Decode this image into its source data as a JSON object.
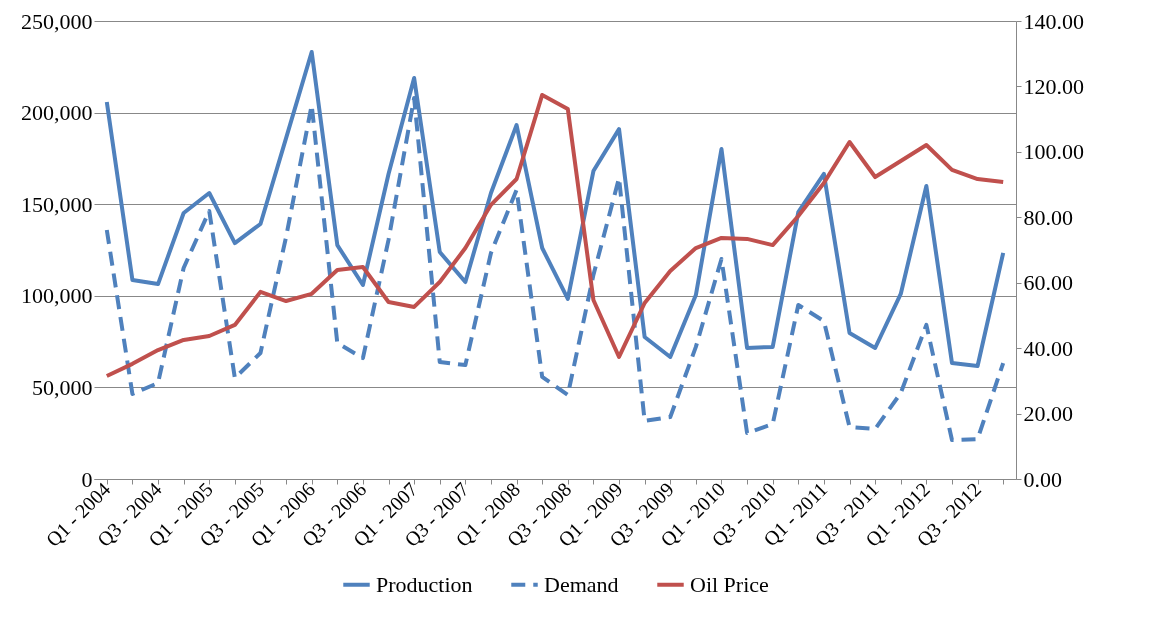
{
  "chart_data": {
    "type": "line",
    "categories": [
      "Q1 - 2004",
      null,
      "Q3 - 2004",
      null,
      "Q1 - 2005",
      null,
      "Q3 - 2005",
      null,
      "Q1 - 2006",
      null,
      "Q3 - 2006",
      null,
      "Q1 - 2007",
      null,
      "Q3 - 2007",
      null,
      "Q1 - 2008",
      null,
      "Q3 - 2008",
      null,
      "Q1 - 2009",
      null,
      "Q3 - 2009",
      null,
      "Q1 - 2010",
      null,
      "Q3 - 2010",
      null,
      "Q1 - 2011",
      null,
      "Q3 - 2011",
      null,
      "Q1 - 2012",
      null,
      "Q3 - 2012",
      null
    ],
    "series": [
      {
        "name": "Production",
        "color": "#4f81bd",
        "line_style": "solid",
        "values": [
          205800,
          108600,
          106400,
          145200,
          156100,
          128800,
          139200,
          186100,
          233100,
          127700,
          105900,
          166500,
          218900,
          123900,
          107500,
          156100,
          193200,
          126100,
          98300,
          168100,
          191000,
          77500,
          66600,
          100400,
          180100,
          71500,
          72100,
          145700,
          166500,
          79700,
          71500,
          101000,
          159900,
          63300,
          61700,
          123400
        ]
      },
      {
        "name": "Demand",
        "color": "#4f81bd",
        "line_style": "dashed",
        "values": [
          135900,
          46400,
          52400,
          115200,
          146300,
          55100,
          68800,
          132100,
          204100,
          74200,
          66000,
          130500,
          208000,
          63900,
          62200,
          123400,
          157800,
          55700,
          45900,
          111400,
          164300,
          31700,
          33800,
          72100,
          120100,
          25100,
          30000,
          95000,
          86200,
          28400,
          27300,
          46900,
          84100,
          21300,
          21800,
          63300
        ]
      },
      {
        "name": "Oil Price",
        "color": "#c0504d",
        "line_style": "solid",
        "axis": "y2",
        "values": [
          31.5,
          35.2,
          39.4,
          42.5,
          43.7,
          47.1,
          57.2,
          54.4,
          56.6,
          63.9,
          64.8,
          54.1,
          52.6,
          60.2,
          70.6,
          83.8,
          91.7,
          117.4,
          113.1,
          54.7,
          37.3,
          53.8,
          63.6,
          70.6,
          73.7,
          73.4,
          71.5,
          80.4,
          90.5,
          103.0,
          92.3,
          97.2,
          102.1,
          94.5,
          91.7,
          90.8
        ]
      }
    ],
    "ylim": [
      0,
      250000
    ],
    "yticks": [
      0,
      {
        "value": 50000,
        "label": "50,000"
      },
      {
        "value": 100000,
        "label": "100,000"
      },
      {
        "value": 150000,
        "label": "150,000"
      },
      {
        "value": 200000,
        "label": "200,000"
      },
      {
        "value": 250000,
        "label": "250,000"
      }
    ],
    "y2lim": [
      0,
      140
    ],
    "y2ticks": [
      {
        "value": 0,
        "label": "0.00"
      },
      {
        "value": 20,
        "label": "20.00"
      },
      {
        "value": 40,
        "label": "40.00"
      },
      {
        "value": 60,
        "label": "60.00"
      },
      {
        "value": 80,
        "label": "80.00"
      },
      {
        "value": 100,
        "label": "100.00"
      },
      {
        "value": 120,
        "label": "120.00"
      },
      {
        "value": 140,
        "label": "140.00"
      }
    ],
    "grid": "y",
    "legend": "bottom",
    "marker": "none"
  }
}
